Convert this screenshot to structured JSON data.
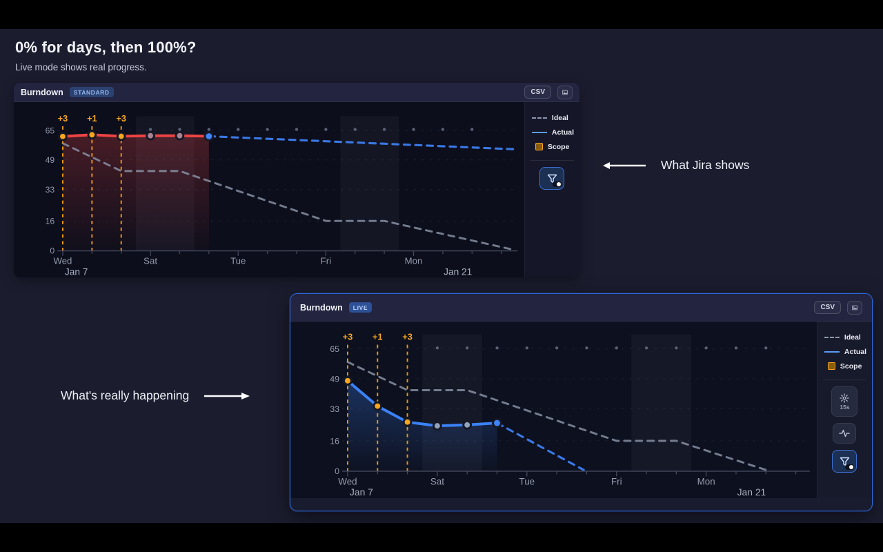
{
  "page": {
    "heading": "0% for days, then 100%?",
    "subheading": "Live mode shows real progress.",
    "annotations": {
      "jira": "What Jira shows",
      "really": "What's really happening"
    }
  },
  "colors": {
    "background": "#1b1c2e",
    "plot_background": "#0c0e1b",
    "accent_blue": "#3b82f6",
    "actual_red": "#ef4444",
    "scope_orange": "#f5a623",
    "ideal_gray": "#8d97ab",
    "live_border": "#2e68d9"
  },
  "chart_data": [
    {
      "type": "line",
      "panel_title": "Burndown",
      "mode_badge": "STANDARD",
      "toolbar": {
        "csv": "CSV",
        "image_export_icon": "image-export-icon"
      },
      "legend": [
        "Ideal",
        "Actual",
        "Scope"
      ],
      "axes": {
        "y_ticks": [
          0,
          16,
          33,
          49,
          65
        ],
        "ylim": [
          0,
          68
        ],
        "x_range_days": [
          0,
          15
        ],
        "x_tick_labels": [
          {
            "day": 0,
            "label": "Wed"
          },
          {
            "day": 3,
            "label": "Sat"
          },
          {
            "day": 6,
            "label": "Tue"
          },
          {
            "day": 9,
            "label": "Fri"
          },
          {
            "day": 12,
            "label": "Mon"
          }
        ],
        "x_start_label": "Jan 7",
        "x_end_label": "Jan 21"
      },
      "scope_changes": [
        {
          "day": 0,
          "label": "+3"
        },
        {
          "day": 1,
          "label": "+1"
        },
        {
          "day": 2,
          "label": "+3"
        }
      ],
      "weekend_bands": [
        [
          2.5,
          4.5
        ],
        [
          9.5,
          11.5
        ]
      ],
      "series": {
        "ideal": {
          "name": "Ideal",
          "style": "dashed",
          "color": "#8d97ab",
          "points": [
            [
              0,
              58
            ],
            [
              2,
              43
            ],
            [
              4,
              43
            ],
            [
              9,
              16
            ],
            [
              11,
              16
            ],
            [
              15.4,
              0.5
            ]
          ]
        },
        "actual": {
          "name": "Actual",
          "style": "solid",
          "color": "#ef4444",
          "points": [
            [
              0,
              61.7
            ],
            [
              1,
              62.6
            ],
            [
              2,
              61.8
            ],
            [
              3,
              62.1
            ],
            [
              4,
              62.1
            ],
            [
              5,
              61.8
            ]
          ],
          "dot_types": [
            "scope",
            "scope",
            "scope",
            "plain",
            "plain",
            "current"
          ],
          "dot_scope_color": "#f6a71f",
          "dot_plain_color": "#aa8494",
          "dot_current_color": "#3f83f8",
          "fill_top": "rgba(239,68,68,0.26)",
          "fill_bottom": "rgba(239,68,68,0.02)"
        },
        "projection": {
          "name": "Forecast",
          "style": "dashed",
          "color": "#3d7ef0",
          "points": [
            [
              5,
              61.8
            ],
            [
              15.4,
              54.8
            ]
          ]
        },
        "scope": {
          "name": "Scope",
          "level": 65.5,
          "dot_days": [
            3,
            14
          ],
          "color": "#5b6275"
        }
      }
    },
    {
      "type": "line",
      "panel_title": "Burndown",
      "mode_badge": "LIVE",
      "toolbar": {
        "csv": "CSV",
        "image_export_icon": "image-export-icon"
      },
      "legend": [
        "Ideal",
        "Actual",
        "Scope"
      ],
      "tools": {
        "interval_label": "15s"
      },
      "axes": {
        "y_ticks": [
          0,
          16,
          33,
          49,
          65
        ],
        "ylim": [
          0,
          68
        ],
        "x_range_days": [
          0,
          15
        ],
        "x_tick_labels": [
          {
            "day": 0,
            "label": "Wed"
          },
          {
            "day": 3,
            "label": "Sat"
          },
          {
            "day": 6,
            "label": "Tue"
          },
          {
            "day": 9,
            "label": "Fri"
          },
          {
            "day": 12,
            "label": "Mon"
          }
        ],
        "x_start_label": "Jan 7",
        "x_end_label": "Jan 21"
      },
      "scope_changes": [
        {
          "day": 0,
          "label": "+3"
        },
        {
          "day": 1,
          "label": "+1"
        },
        {
          "day": 2,
          "label": "+3"
        }
      ],
      "weekend_bands": [
        [
          2.5,
          4.5
        ],
        [
          9.5,
          11.5
        ]
      ],
      "series": {
        "ideal": {
          "name": "Ideal",
          "style": "dashed",
          "color": "#8d97ab",
          "points": [
            [
              0,
              58
            ],
            [
              2,
              43
            ],
            [
              4,
              43
            ],
            [
              9,
              16
            ],
            [
              11,
              16
            ],
            [
              14,
              0.5
            ]
          ]
        },
        "actual": {
          "name": "Actual",
          "style": "solid",
          "color": "#3b82f6",
          "points": [
            [
              0,
              48
            ],
            [
              1,
              34.5
            ],
            [
              2,
              26
            ],
            [
              3,
              24
            ],
            [
              4,
              24.5
            ],
            [
              5,
              25.5
            ]
          ],
          "dot_types": [
            "scope",
            "scope",
            "scope",
            "plain",
            "plain",
            "current"
          ],
          "dot_scope_color": "#f6a71f",
          "dot_plain_color": "#8fa3bd",
          "dot_current_color": "#3f83f8",
          "fill_top": "rgba(59,130,246,0.30)",
          "fill_bottom": "rgba(59,130,246,0.02)"
        },
        "projection": {
          "name": "Forecast",
          "style": "dashed",
          "color": "#3d7ef0",
          "points": [
            [
              5,
              25.5
            ],
            [
              7.9,
              0.5
            ]
          ]
        },
        "scope": {
          "name": "Scope",
          "level": 65.5,
          "dot_days": [
            3,
            14
          ],
          "color": "#5b6275"
        }
      }
    }
  ]
}
